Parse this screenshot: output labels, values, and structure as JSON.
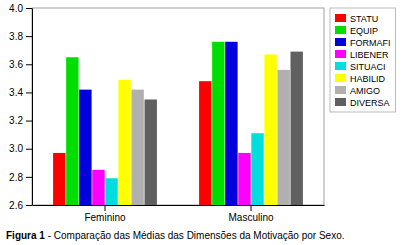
{
  "chart_data": {
    "type": "bar",
    "categories": [
      "Feminino",
      "Masculino"
    ],
    "series": [
      {
        "name": "STATU",
        "color": "#ff0000",
        "values": [
          2.97,
          3.48
        ]
      },
      {
        "name": "EQUIP",
        "color": "#00dd00",
        "values": [
          3.65,
          3.76
        ]
      },
      {
        "name": "FORMAFI",
        "color": "#0000dd",
        "values": [
          3.42,
          3.76
        ]
      },
      {
        "name": "LIBENER",
        "color": "#ff00ff",
        "values": [
          2.85,
          2.97
        ]
      },
      {
        "name": "SITUACI",
        "color": "#00dddd",
        "values": [
          2.79,
          3.11
        ]
      },
      {
        "name": "HABILID",
        "color": "#ffff00",
        "values": [
          3.49,
          3.67
        ]
      },
      {
        "name": "AMIGO",
        "color": "#b0b0b0",
        "values": [
          3.42,
          3.56
        ]
      },
      {
        "name": "DIVERSA",
        "color": "#606060",
        "values": [
          3.35,
          3.69
        ]
      }
    ],
    "ylim": [
      2.6,
      4.0
    ],
    "yticks": [
      2.6,
      2.8,
      {
        "value": 3.0,
        "label": "3.0"
      },
      3.2,
      3.4,
      3.6,
      3.8,
      {
        "value": 4.0,
        "label": "4.0"
      }
    ],
    "grid": false,
    "legend": "right",
    "annotations": [
      "Figura 1",
      " - Comparação das Médias das Dimensões da Motivação por Sexo."
    ]
  }
}
